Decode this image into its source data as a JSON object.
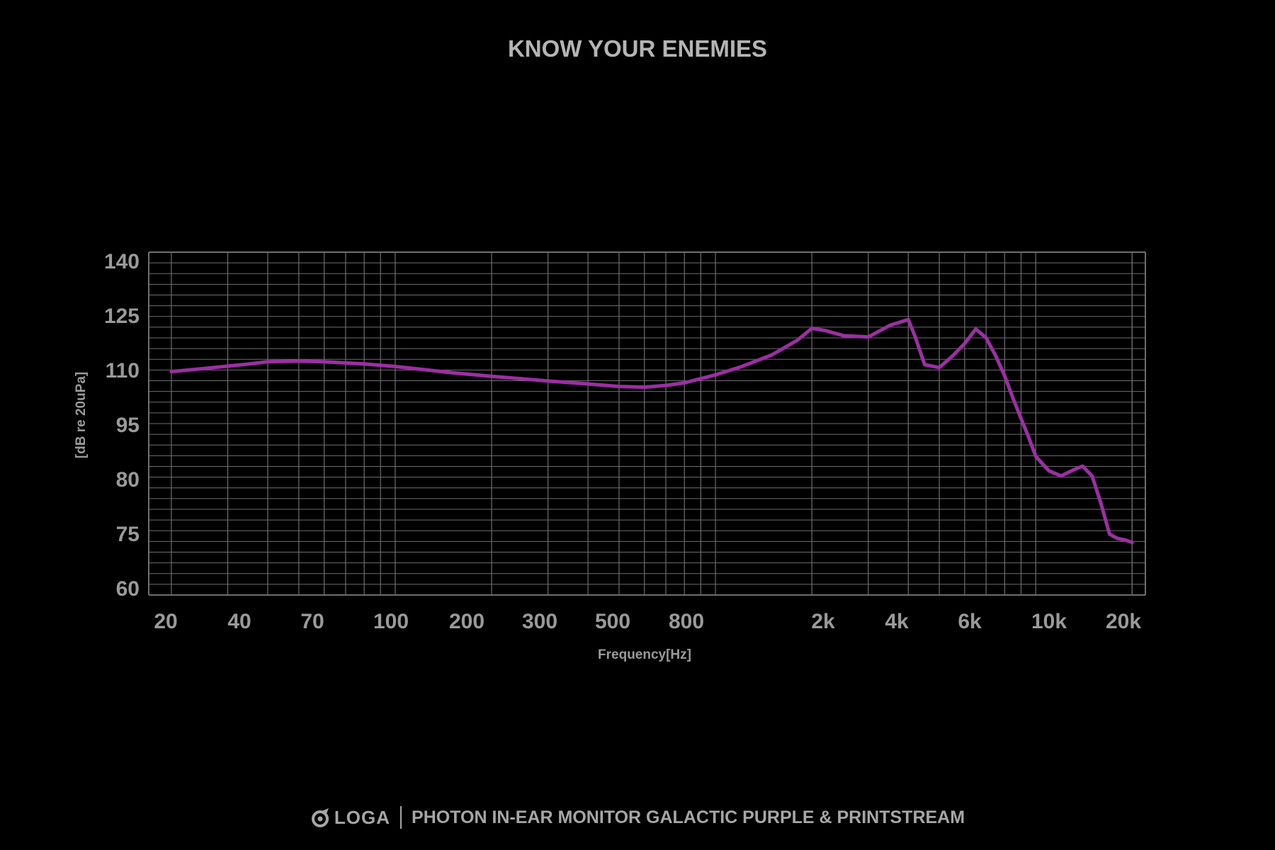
{
  "header": {
    "title": "KNOW YOUR ENEMIES"
  },
  "footer": {
    "brand": "LOGA",
    "product": "PHOTON IN-EAR MONITOR GALACTIC PURPLE & PRINTSTREAM"
  },
  "colors": {
    "background": "#000000",
    "grid": "#6e6e6e",
    "line": "#9b2fa3",
    "text": "#a9a9a9"
  },
  "icons": {
    "brand_logo": "loga-logo-icon"
  },
  "chart_data": {
    "type": "line",
    "title": "KNOW YOUR ENEMIES",
    "xlabel": "Frequency[Hz]",
    "ylabel": "[dB re 20uPa]",
    "x_scale": "log",
    "grid": true,
    "x_ticks": [
      "20",
      "40",
      "70",
      "100",
      "200",
      "300",
      "500",
      "800",
      "2k",
      "4k",
      "6k",
      "10k",
      "20k"
    ],
    "y_ticks": [
      "140",
      "125",
      "110",
      "95",
      "80",
      "75",
      "60"
    ],
    "series": [
      {
        "color": "#9b2fa3",
        "x": [
          20,
          25,
          30,
          35,
          40,
          50,
          60,
          80,
          100,
          150,
          200,
          300,
          400,
          500,
          600,
          700,
          800,
          1000,
          1200,
          1500,
          1800,
          2000,
          2200,
          2500,
          3000,
          3500,
          4000,
          4200,
          4500,
          5000,
          5500,
          6000,
          6500,
          7000,
          7500,
          8000,
          8500,
          9000,
          9500,
          10000,
          11000,
          12000,
          13000,
          14000,
          15000,
          16000,
          17000,
          18000,
          19000,
          20000
        ],
        "y": [
          109.5,
          110.3,
          111,
          111.6,
          112.2,
          112.4,
          112.2,
          111.6,
          110.9,
          109.2,
          108.2,
          106.9,
          106.1,
          105.4,
          105.2,
          105.7,
          106.4,
          108.6,
          110.8,
          114.1,
          118.1,
          121.4,
          120.8,
          119.4,
          119,
          122.2,
          123.8,
          119.2,
          111.4,
          110.6,
          113.8,
          117.2,
          121.2,
          118.8,
          113.8,
          108.3,
          102.1,
          96.6,
          91.5,
          86.2,
          82.2,
          80.8,
          82.3,
          83.5,
          80.8,
          77.7,
          74.8,
          73.6,
          73.2,
          72.5
        ]
      }
    ]
  }
}
